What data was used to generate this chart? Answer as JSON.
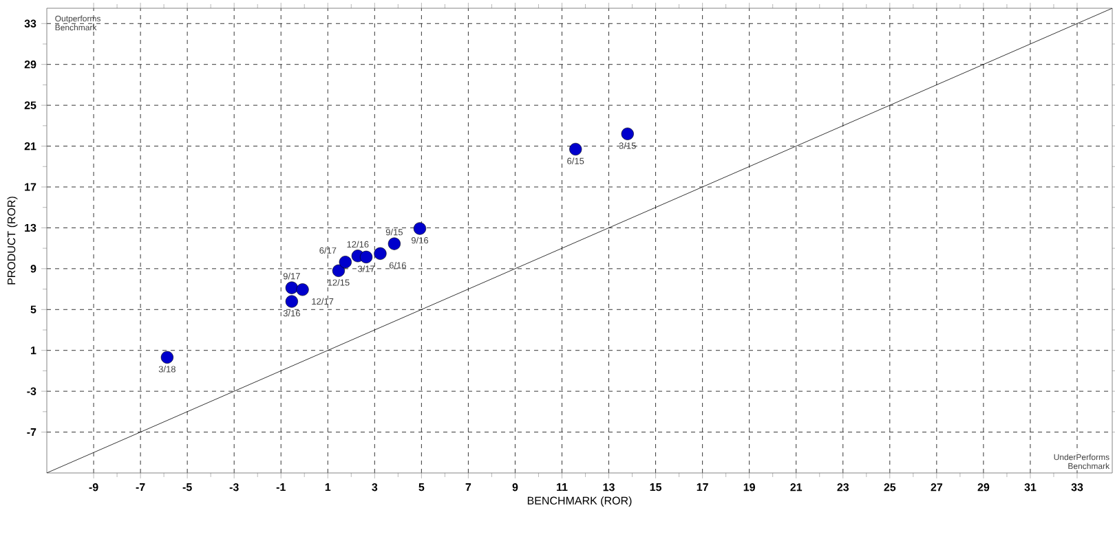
{
  "chart_data": {
    "type": "scatter",
    "xlabel": "BENCHMARK (ROR)",
    "ylabel": "PRODUCT (ROR)",
    "xlim": [
      -11,
      34.5
    ],
    "ylim": [
      -11,
      34.5
    ],
    "xticks": [
      -9,
      -7,
      -5,
      -3,
      -1,
      1,
      3,
      5,
      7,
      9,
      11,
      13,
      15,
      17,
      19,
      21,
      23,
      25,
      27,
      29,
      31,
      33
    ],
    "yticks": [
      -7,
      -3,
      1,
      5,
      9,
      13,
      17,
      21,
      25,
      29,
      33
    ],
    "grid": true,
    "series": [
      {
        "color": "#0000cc",
        "marker": "circle",
        "x": [
          13.8,
          11.58,
          3.84,
          1.46,
          -0.54,
          3.24,
          4.93,
          2.28,
          2.64,
          1.75,
          -0.54,
          -0.08,
          -5.86
        ],
        "values": [
          22.2,
          20.7,
          11.44,
          8.8,
          5.79,
          10.48,
          12.93,
          10.25,
          10.14,
          9.65,
          7.13,
          6.95,
          0.32
        ]
      },
      {
        "type": "line",
        "color": "#000000",
        "marker": "none",
        "x": [
          -11,
          34.5
        ],
        "values": [
          -11,
          34.5
        ]
      }
    ],
    "annotations": [
      {
        "text": "3/15",
        "x": 13.8,
        "y": 22.2
      },
      {
        "text": "6/15",
        "x": 11.58,
        "y": 20.7
      },
      {
        "text": "9/15",
        "x": 3.84,
        "y": 11.44
      },
      {
        "text": "12/15",
        "x": 1.46,
        "y": 8.8
      },
      {
        "text": "3/16",
        "x": -0.54,
        "y": 5.79
      },
      {
        "text": "6/16",
        "x": 3.24,
        "y": 10.48
      },
      {
        "text": "9/16",
        "x": 4.93,
        "y": 12.93
      },
      {
        "text": "12/16",
        "x": 2.28,
        "y": 10.25
      },
      {
        "text": "3/17",
        "x": 2.64,
        "y": 10.14
      },
      {
        "text": "6/17",
        "x": 1.75,
        "y": 9.65
      },
      {
        "text": "9/17",
        "x": -0.54,
        "y": 7.13
      },
      {
        "text": "12/17",
        "x": -0.08,
        "y": 6.95
      },
      {
        "text": "3/18",
        "x": -5.86,
        "y": 0.32
      },
      "Outperforms Benchmark",
      "UnderPerforms Benchmark"
    ]
  }
}
